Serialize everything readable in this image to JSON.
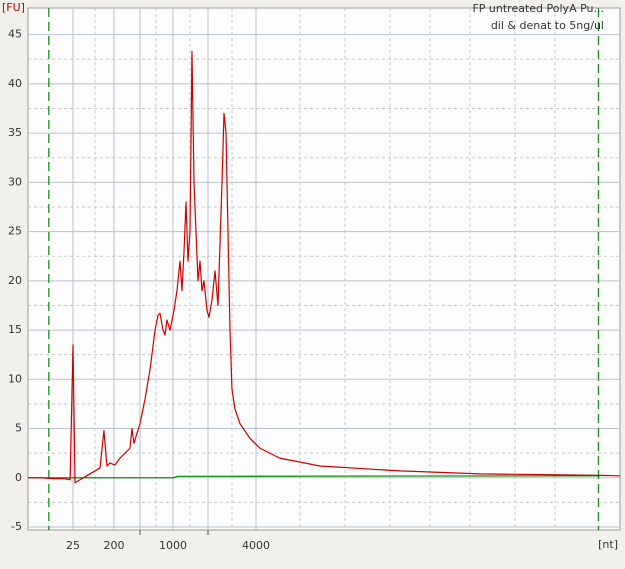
{
  "chart_data": {
    "type": "line",
    "title": "FP untreated  PolyA Pu...",
    "subtitle": "dil & denat to 5ng/ul",
    "ylabel": "[FU]",
    "xlabel": "[nt]",
    "xscale": "ladder",
    "xlim": [
      15,
      14000
    ],
    "xticks": [
      25,
      200,
      1000,
      4000
    ],
    "xminorticks": [
      500,
      2000
    ],
    "ylim": [
      -5.3,
      47.7
    ],
    "yticks": [
      -5,
      0,
      5,
      10,
      15,
      20,
      25,
      30,
      35,
      40,
      45
    ],
    "grid": true,
    "markers": [
      19,
      13000
    ],
    "marker_color": "#1a8a1a",
    "series": [
      {
        "color": "#cc0000",
        "x": [
          15,
          17.2,
          20.4,
          22.8,
          24.2,
          25,
          27.7,
          45.9,
          98.4,
          120,
          140,
          163,
          207,
          247,
          295,
          351,
          377,
          404,
          449,
          500,
          556,
          617,
          686,
          730,
          761,
          811,
          845,
          882,
          939,
          1020,
          1082,
          1149,
          1195,
          1244,
          1294,
          1346,
          1400,
          1456,
          1516,
          1577,
          1641,
          1707,
          1776,
          1848,
          1960,
          2029,
          2117,
          2212,
          2310,
          2449,
          2520,
          2595,
          2669,
          2748,
          2827,
          2951,
          3174,
          3666,
          4055,
          4341,
          4984,
          6565,
          8650,
          11380,
          13060,
          14000
        ],
        "values": [
          0,
          0,
          -0.1,
          -0.1,
          -0.2,
          13.5,
          -0.5,
          0.1,
          1,
          4.8,
          1.2,
          1.5,
          1.3,
          2,
          2.5,
          3,
          5,
          3.5,
          4.5,
          5.5,
          8,
          11,
          15,
          16.5,
          16.7,
          15,
          14.5,
          16,
          15,
          17,
          19,
          22,
          19,
          23,
          28,
          22,
          25,
          43.3,
          30,
          25,
          20,
          22,
          19,
          20,
          17,
          16.3,
          18,
          21,
          17.5,
          30,
          37,
          35,
          25,
          15,
          9,
          7,
          5.5,
          4,
          3,
          2,
          1.2,
          0.7,
          0.4,
          0.3,
          0.25,
          0.2
        ]
      },
      {
        "color": "#008000",
        "x": [
          15,
          1000,
          1100,
          13060
        ],
        "values": [
          0,
          0,
          0.15,
          0.2
        ]
      }
    ]
  }
}
